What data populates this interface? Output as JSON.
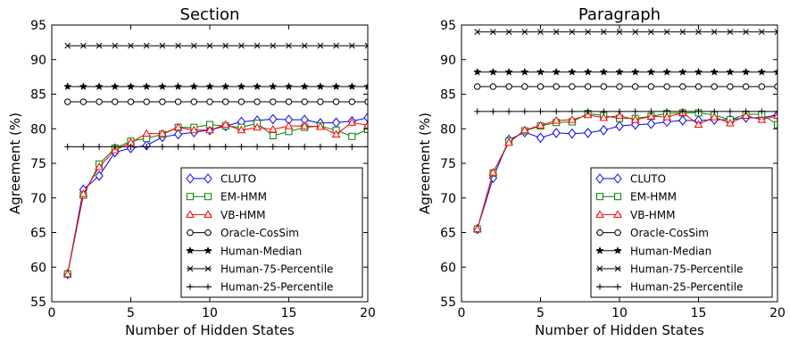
{
  "chart_data": [
    {
      "type": "line",
      "title": "Section",
      "xlabel": "Number of Hidden States",
      "ylabel": "Agreement (%)",
      "xlim": [
        0,
        20
      ],
      "ylim": [
        55,
        95
      ],
      "xticks": [
        0,
        5,
        10,
        15,
        20
      ],
      "yticks": [
        55,
        60,
        65,
        70,
        75,
        80,
        85,
        90,
        95
      ],
      "legend_position": "lower-right",
      "series": [
        {
          "name": "CLUTO",
          "color": "#0000ff",
          "marker": "diamond",
          "x": [
            1,
            2,
            3,
            4,
            5,
            6,
            7,
            8,
            9,
            10,
            11,
            12,
            13,
            14,
            15,
            16,
            17,
            18,
            19,
            20
          ],
          "y": [
            59.0,
            71.2,
            73.2,
            76.6,
            77.2,
            77.6,
            78.8,
            79.2,
            79.5,
            79.8,
            80.4,
            81.0,
            81.2,
            81.4,
            81.3,
            81.3,
            80.8,
            80.9,
            81.1,
            81.6
          ]
        },
        {
          "name": "EM-HMM",
          "color": "#008000",
          "marker": "square",
          "x": [
            1,
            2,
            3,
            4,
            5,
            6,
            7,
            8,
            9,
            10,
            11,
            12,
            13,
            14,
            15,
            16,
            17,
            18,
            19,
            20
          ],
          "y": [
            59.0,
            70.4,
            74.9,
            77.2,
            78.2,
            78.6,
            79.2,
            80.2,
            80.2,
            80.6,
            80.4,
            80.2,
            80.8,
            79.0,
            79.6,
            80.2,
            80.4,
            79.8,
            78.9,
            79.9
          ]
        },
        {
          "name": "VB-HMM",
          "color": "#ff0000",
          "marker": "triangle",
          "x": [
            1,
            2,
            3,
            4,
            5,
            6,
            7,
            8,
            9,
            10,
            11,
            12,
            13,
            14,
            15,
            16,
            17,
            18,
            19,
            20
          ],
          "y": [
            59.0,
            70.6,
            74.5,
            76.9,
            78.0,
            79.3,
            79.3,
            80.2,
            79.8,
            79.8,
            80.6,
            79.8,
            80.2,
            79.9,
            80.4,
            80.4,
            80.3,
            79.2,
            80.9,
            80.5
          ]
        },
        {
          "name": "Oracle-CosSim",
          "color": "#000000",
          "marker": "circle",
          "constant": 83.9
        },
        {
          "name": "Human-Median",
          "color": "#000000",
          "marker": "star",
          "constant": 86.1
        },
        {
          "name": "Human-75-Percentile",
          "color": "#000000",
          "marker": "x",
          "constant": 92.0
        },
        {
          "name": "Human-25-Percentile",
          "color": "#000000",
          "marker": "plus",
          "constant": 77.4
        }
      ]
    },
    {
      "type": "line",
      "title": "Paragraph",
      "xlabel": "Number of Hidden States",
      "ylabel": "Agreement (%)",
      "xlim": [
        0,
        20
      ],
      "ylim": [
        55,
        95
      ],
      "xticks": [
        0,
        5,
        10,
        15,
        20
      ],
      "yticks": [
        55,
        60,
        65,
        70,
        75,
        80,
        85,
        90,
        95
      ],
      "legend_position": "lower-right",
      "series": [
        {
          "name": "CLUTO",
          "color": "#0000ff",
          "marker": "diamond",
          "x": [
            1,
            2,
            3,
            4,
            5,
            6,
            7,
            8,
            9,
            10,
            11,
            12,
            13,
            14,
            15,
            16,
            17,
            18,
            19,
            20
          ],
          "y": [
            65.5,
            72.9,
            78.4,
            79.5,
            78.7,
            79.4,
            79.3,
            79.4,
            79.8,
            80.4,
            80.6,
            80.7,
            81.0,
            81.2,
            81.2,
            81.3,
            81.3,
            81.6,
            81.6,
            82.0
          ]
        },
        {
          "name": "EM-HMM",
          "color": "#008000",
          "marker": "square",
          "x": [
            1,
            2,
            3,
            4,
            5,
            6,
            7,
            8,
            9,
            10,
            11,
            12,
            13,
            14,
            15,
            16,
            17,
            18,
            19,
            20
          ],
          "y": [
            65.5,
            73.6,
            78.2,
            79.7,
            80.4,
            80.9,
            81.0,
            82.2,
            81.9,
            81.5,
            81.5,
            81.8,
            82.2,
            82.3,
            82.3,
            82.0,
            81.3,
            82.1,
            82.1,
            80.6
          ]
        },
        {
          "name": "VB-HMM",
          "color": "#ff0000",
          "marker": "triangle",
          "x": [
            1,
            2,
            3,
            4,
            5,
            6,
            7,
            8,
            9,
            10,
            11,
            12,
            13,
            14,
            15,
            16,
            17,
            18,
            19,
            20
          ],
          "y": [
            65.5,
            73.7,
            78.0,
            79.8,
            80.5,
            81.2,
            81.3,
            82.0,
            81.6,
            81.9,
            81.3,
            81.8,
            81.7,
            82.3,
            80.6,
            81.7,
            80.8,
            81.9,
            81.3,
            81.9
          ]
        },
        {
          "name": "Oracle-CosSim",
          "color": "#000000",
          "marker": "circle",
          "constant": 86.1
        },
        {
          "name": "Human-Median",
          "color": "#000000",
          "marker": "star",
          "constant": 88.2
        },
        {
          "name": "Human-75-Percentile",
          "color": "#000000",
          "marker": "x",
          "constant": 94.0
        },
        {
          "name": "Human-25-Percentile",
          "color": "#000000",
          "marker": "plus",
          "constant": 82.5
        }
      ]
    }
  ]
}
